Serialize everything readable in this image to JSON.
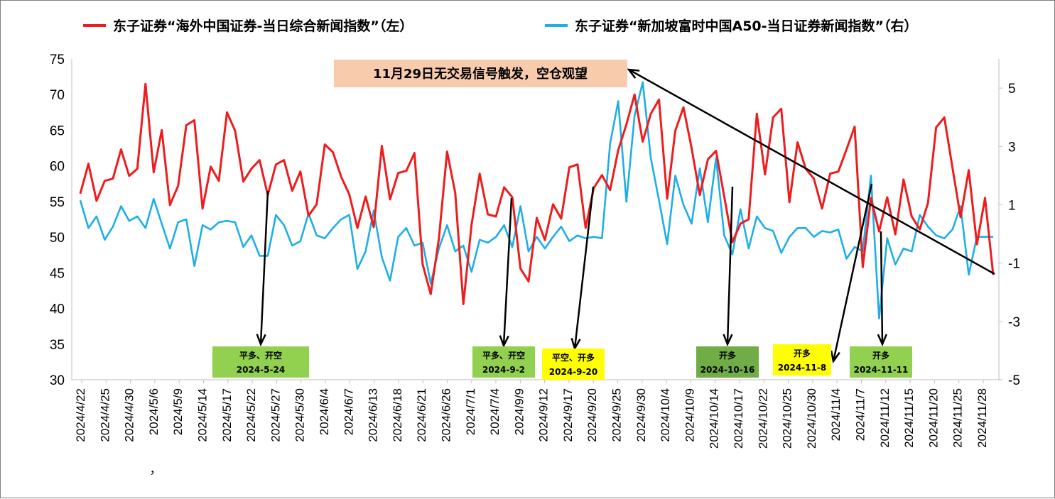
{
  "colors": {
    "left_series": "#ee1c1c",
    "right_series": "#1eaee8",
    "arrow": "#000000",
    "green_box": "#92d050",
    "dark_green_box": "#70ad47",
    "yellow_box": "#ffff00",
    "notice_box": "#f8cbad"
  },
  "chart_data": {
    "type": "line",
    "legend": [
      "东子证券“海外中国证券-当日综合新闻指数”（左）",
      "东子证券“新加坡富时中国A50-当日证券新闻指数”（右）"
    ],
    "legend_position": "top",
    "grid": false,
    "y_left": {
      "min": 30,
      "max": 75,
      "ticks": [
        30,
        35,
        40,
        45,
        50,
        55,
        60,
        65,
        70,
        75
      ]
    },
    "y_right": {
      "min": -5,
      "max": 6,
      "ticks": [
        -5,
        -3,
        -1,
        1,
        3,
        5
      ]
    },
    "x_tick_labels": [
      "2024/4/22",
      "2024/4/25",
      "2024/4/30",
      "2024/5/6",
      "2024/5/9",
      "2024/5/14",
      "2024/5/17",
      "2024/5/22",
      "2024/5/27",
      "2024/5/30",
      "2024/6/4",
      "2024/6/7",
      "2024/6/13",
      "2024/6/18",
      "2024/6/21",
      "2024/6/26",
      "2024/7/1",
      "2024/7/4",
      "2024/9/9",
      "2024/9/12",
      "2024/9/17",
      "2024/9/20",
      "2024/9/25",
      "2024/9/30",
      "2024/10/4",
      "2024/10/9",
      "2024/10/14",
      "2024/10/17",
      "2024/10/22",
      "2024/10/25",
      "2024/10/30",
      "2024/11/4",
      "2024/11/7",
      "2024/11/12",
      "2024/11/15",
      "2024/11/20",
      "2024/11/25",
      "2024/11/28"
    ],
    "stray_mark": "，",
    "series": [
      {
        "name": "东子证券“海外中国证券-当日综合新闻指数”（左）",
        "axis": "left",
        "values": [
          56.1,
          60.3,
          55.1,
          57.9,
          58.2,
          62.3,
          58.6,
          59.6,
          71.5,
          59.1,
          65.0,
          54.5,
          57.2,
          65.7,
          66.4,
          54.0,
          59.9,
          57.9,
          67.5,
          64.9,
          57.8,
          59.6,
          60.8,
          55.9,
          60.2,
          60.8,
          56.5,
          59.2,
          53.0,
          54.6,
          63.0,
          61.9,
          58.5,
          56.0,
          51.3,
          55.7,
          51.4,
          62.8,
          55.3,
          59.0,
          59.3,
          61.8,
          46.2,
          42.0,
          49.8,
          62.0,
          56.2,
          40.6,
          51.7,
          58.9,
          53.2,
          52.9,
          57.0,
          55.6,
          45.6,
          43.8,
          52.7,
          49.6,
          54.6,
          52.6,
          59.8,
          60.2,
          51.3,
          56.9,
          58.7,
          56.6,
          62.2,
          65.8,
          70.0,
          63.4,
          67.3,
          69.3,
          55.4,
          64.9,
          68.2,
          62.5,
          55.9,
          60.9,
          62.1,
          55.7,
          49.3,
          51.9,
          52.5,
          67.3,
          58.8,
          66.8,
          68.0,
          54.9,
          63.3,
          59.6,
          58.2,
          54.0,
          58.9,
          59.2,
          62.3,
          65.5,
          45.8,
          55.5,
          50.8,
          55.6,
          50.4,
          58.1,
          52.9,
          51.1,
          54.8,
          65.4,
          66.8,
          59.8,
          52.8,
          59.4,
          49.0,
          55.5,
          44.7
        ]
      },
      {
        "name": "东子证券“新加坡富时中国A50-当日证券新闻指数”（右）",
        "axis": "right",
        "values": [
          1.15,
          0.2,
          0.6,
          -0.2,
          0.25,
          0.95,
          0.45,
          0.6,
          0.2,
          1.2,
          0.35,
          -0.5,
          0.4,
          0.5,
          -1.1,
          0.3,
          0.15,
          0.4,
          0.45,
          0.4,
          -0.45,
          -0.05,
          -0.75,
          -0.75,
          0.65,
          0.3,
          -0.4,
          -0.25,
          0.7,
          -0.05,
          -0.15,
          0.2,
          0.5,
          0.65,
          -1.2,
          -0.6,
          0.8,
          -0.8,
          -1.6,
          -0.1,
          0.2,
          -0.4,
          -0.3,
          -1.7,
          -0.5,
          0.3,
          -0.6,
          -0.4,
          -1.3,
          -0.2,
          -0.3,
          -0.1,
          0.3,
          -0.45,
          0.95,
          -0.6,
          -0.1,
          -0.5,
          -0.1,
          0.25,
          -0.25,
          -0.05,
          -0.15,
          -0.1,
          -0.15,
          3.1,
          4.55,
          1.1,
          4.05,
          5.2,
          2.6,
          1.15,
          -0.35,
          2.0,
          1.0,
          0.35,
          2.25,
          0.4,
          2.6,
          -0.05,
          -0.7,
          0.85,
          -0.5,
          0.6,
          0.2,
          0.1,
          -0.65,
          -0.1,
          0.2,
          0.2,
          -0.1,
          0.1,
          0.05,
          0.15,
          -0.85,
          -0.45,
          -0.6,
          2.0,
          -2.9,
          -0.15,
          -1.05,
          -0.5,
          -0.6,
          0.65,
          0.25,
          -0.05,
          -0.15,
          0.15,
          0.95,
          -1.4,
          -0.1,
          -0.1,
          -0.1
        ]
      }
    ],
    "annotations": [
      {
        "lines": [
          "平多、开空",
          "2024-5-24"
        ],
        "box": "green_box"
      },
      {
        "lines": [
          "平多、开空",
          "2024-9-2"
        ],
        "box": "green_box"
      },
      {
        "lines": [
          "平空、开多",
          "2024-9-20"
        ],
        "box": "yellow_box"
      },
      {
        "lines": [
          "开多",
          "2024-10-16"
        ],
        "box": "dark_green_box"
      },
      {
        "lines": [
          "开多",
          "2024-11-8"
        ],
        "box": "yellow_box"
      },
      {
        "lines": [
          "开多",
          "2024-11-11"
        ],
        "box": "green_box"
      }
    ],
    "notice": "11月29日无交易信号触发，空仓观望"
  }
}
